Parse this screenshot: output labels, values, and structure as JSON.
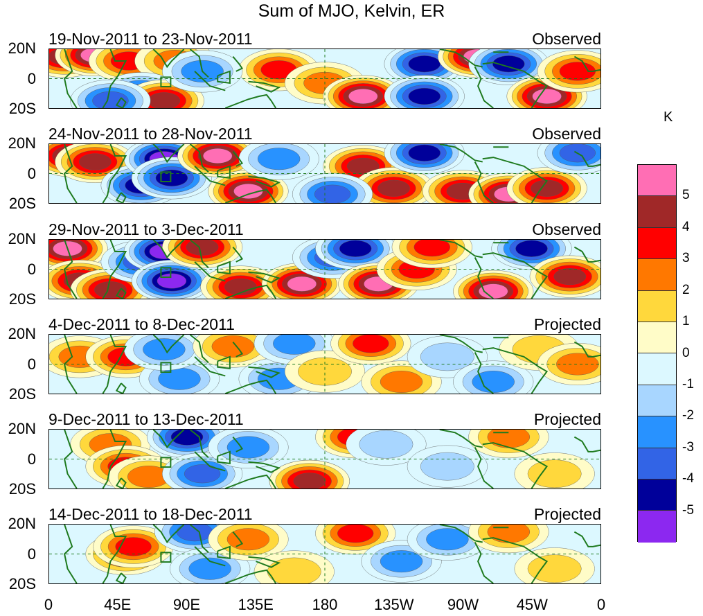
{
  "title": "Sum of MJO, Kelvin, ER",
  "panels": [
    {
      "date_range": "19-Nov-2011 to 23-Nov-2011",
      "status": "Observed",
      "blobs": [
        [
          10,
          15,
          4
        ],
        [
          30,
          16,
          5
        ],
        [
          52,
          12,
          3
        ],
        [
          82,
          12,
          2
        ],
        [
          60,
          -10,
          -3
        ],
        [
          75,
          -15,
          4
        ],
        [
          150,
          6,
          3
        ],
        [
          180,
          -3,
          2
        ],
        [
          205,
          -12,
          5
        ],
        [
          245,
          10,
          -4
        ],
        [
          245,
          -12,
          -4
        ],
        [
          280,
          15,
          5
        ],
        [
          300,
          10,
          -4
        ],
        [
          325,
          -12,
          5
        ],
        [
          345,
          5,
          3
        ],
        [
          100,
          5,
          -2
        ],
        [
          40,
          -15,
          -3
        ]
      ]
    },
    {
      "date_range": "24-Nov-2011 to 28-Nov-2011",
      "status": "Observed",
      "blobs": [
        [
          15,
          12,
          5
        ],
        [
          30,
          8,
          4
        ],
        [
          60,
          -8,
          -4
        ],
        [
          75,
          10,
          -5
        ],
        [
          80,
          -3,
          -4
        ],
        [
          110,
          12,
          5
        ],
        [
          130,
          -12,
          5
        ],
        [
          150,
          10,
          -2
        ],
        [
          205,
          5,
          4
        ],
        [
          225,
          -10,
          4
        ],
        [
          245,
          14,
          -4
        ],
        [
          270,
          -12,
          4
        ],
        [
          300,
          -14,
          5
        ],
        [
          325,
          -10,
          4
        ],
        [
          345,
          14,
          -3
        ],
        [
          185,
          -14,
          -3
        ]
      ]
    },
    {
      "date_range": "29-Nov-2011 to 3-Dec-2011",
      "status": "Observed",
      "blobs": [
        [
          12,
          14,
          5
        ],
        [
          20,
          -8,
          4
        ],
        [
          40,
          -14,
          4
        ],
        [
          60,
          5,
          -3
        ],
        [
          75,
          12,
          -5
        ],
        [
          80,
          -8,
          -5
        ],
        [
          100,
          15,
          4
        ],
        [
          125,
          -12,
          4
        ],
        [
          165,
          -10,
          5
        ],
        [
          185,
          8,
          -3
        ],
        [
          200,
          14,
          -4
        ],
        [
          215,
          -10,
          5
        ],
        [
          240,
          0,
          3
        ],
        [
          290,
          -15,
          5
        ],
        [
          315,
          14,
          -4
        ],
        [
          340,
          -5,
          4
        ],
        [
          250,
          15,
          3
        ]
      ]
    },
    {
      "date_range": "4-Dec-2011 to 8-Dec-2011",
      "status": "Projected",
      "blobs": [
        [
          20,
          5,
          2
        ],
        [
          50,
          5,
          3
        ],
        [
          85,
          -10,
          -2
        ],
        [
          75,
          10,
          -2
        ],
        [
          120,
          12,
          2
        ],
        [
          150,
          -10,
          -2
        ],
        [
          160,
          14,
          -2
        ],
        [
          180,
          -5,
          1
        ],
        [
          210,
          14,
          3
        ],
        [
          230,
          -12,
          2
        ],
        [
          260,
          5,
          -1
        ],
        [
          290,
          -12,
          -2
        ],
        [
          320,
          10,
          1
        ],
        [
          345,
          0,
          2
        ]
      ]
    },
    {
      "date_range": "9-Dec-2011 to 13-Dec-2011",
      "status": "Projected",
      "blobs": [
        [
          40,
          10,
          2
        ],
        [
          50,
          -5,
          3
        ],
        [
          65,
          -12,
          2
        ],
        [
          90,
          15,
          -4
        ],
        [
          100,
          -10,
          -3
        ],
        [
          130,
          8,
          -2
        ],
        [
          170,
          -15,
          2
        ],
        [
          170,
          -15,
          4
        ],
        [
          200,
          15,
          3
        ],
        [
          220,
          10,
          -1
        ],
        [
          260,
          -5,
          -1
        ],
        [
          300,
          15,
          2
        ],
        [
          330,
          -10,
          1
        ]
      ]
    },
    {
      "date_range": "14-Dec-2011 to 18-Dec-2011",
      "status": "Projected",
      "blobs": [
        [
          50,
          0,
          3
        ],
        [
          55,
          5,
          3
        ],
        [
          95,
          15,
          -3
        ],
        [
          105,
          -10,
          -2
        ],
        [
          130,
          10,
          2
        ],
        [
          160,
          -12,
          1
        ],
        [
          200,
          14,
          3
        ],
        [
          230,
          -5,
          -2
        ],
        [
          260,
          10,
          -2
        ],
        [
          300,
          15,
          2
        ],
        [
          330,
          -10,
          1
        ]
      ]
    }
  ],
  "y_axis_labels": [
    "20N",
    "0",
    "20S"
  ],
  "x_axis_labels": [
    "0",
    "45E",
    "90E",
    "135E",
    "180",
    "135W",
    "90W",
    "45W",
    "0"
  ],
  "colorbar": {
    "unit": "K",
    "labels": [
      "5",
      "4",
      "3",
      "2",
      "1",
      "0",
      "-1",
      "-2",
      "-3",
      "-4",
      "-5"
    ],
    "colors": [
      "#ff6eb4",
      "#a02828",
      "#ff0000",
      "#ff7800",
      "#ffd83c",
      "#fffcc8",
      "#dcf8ff",
      "#a8d6ff",
      "#2892ff",
      "#3264e6",
      "#00009a",
      "#8c28f0"
    ]
  }
}
